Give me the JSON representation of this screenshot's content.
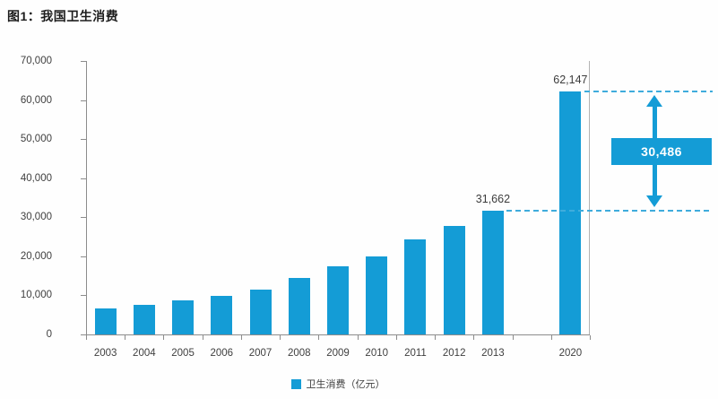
{
  "title": "图1：我国卫生消费",
  "chart_data": {
    "type": "bar",
    "title": "图1：我国卫生消费",
    "categories": [
      "2003",
      "2004",
      "2005",
      "2006",
      "2007",
      "2008",
      "2009",
      "2010",
      "2011",
      "2012",
      "2013",
      "2020"
    ],
    "values": [
      6584,
      7590,
      8660,
      9843,
      11574,
      14535,
      17542,
      19980,
      24346,
      27847,
      31662,
      62147
    ],
    "series_name": "卫生消费（亿元）",
    "xlabel": "",
    "ylabel": "",
    "ylim": [
      0,
      70000
    ],
    "ytick_interval": 10000,
    "ytick_labels": [
      "0",
      "10,000",
      "20,000",
      "30,000",
      "40,000",
      "50,000",
      "60,000",
      "70,000"
    ],
    "grid": false,
    "legend_position": "bottom",
    "gap_slots_before_last": 1,
    "data_labels": [
      {
        "index": 10,
        "text": "31,662"
      },
      {
        "index": 11,
        "text": "62,147"
      }
    ],
    "annotation": {
      "difference_label": "30,486",
      "from_index": 10,
      "to_index": 11,
      "from_value": 31662,
      "to_value": 62147
    },
    "colors": {
      "bar": "#149CD6",
      "dash": "#3FACDC",
      "box": "#149CD6",
      "box_text": "#FFFFFF",
      "axis": "#8C8C8C"
    }
  }
}
